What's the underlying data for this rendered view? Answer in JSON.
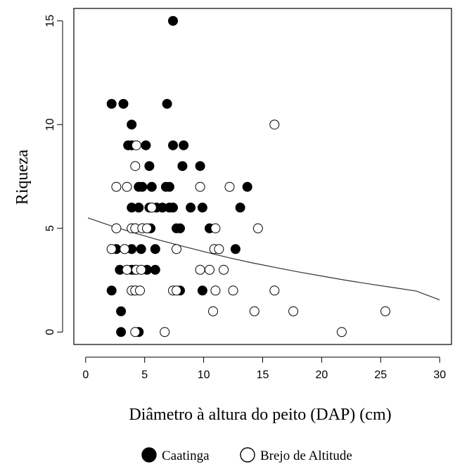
{
  "chart_data": {
    "type": "scatter",
    "xlabel": "Diâmetro à altura do peito (DAP) (cm)",
    "ylabel": "Riqueza",
    "xlim": [
      -1,
      31
    ],
    "ylim": [
      -0.6,
      15.6
    ],
    "x_ticks": [
      0,
      5,
      10,
      15,
      20,
      25,
      30
    ],
    "y_ticks": [
      0,
      5,
      10,
      15
    ],
    "grid": false,
    "legend_position": "bottom-center",
    "series": [
      {
        "name": "Caatinga",
        "marker": "filled-circle",
        "color": "#000000",
        "points": [
          [
            2.2,
            11
          ],
          [
            3.2,
            11
          ],
          [
            7.4,
            15
          ],
          [
            6.9,
            11
          ],
          [
            3.9,
            10
          ],
          [
            3.6,
            9
          ],
          [
            3.9,
            9
          ],
          [
            5.1,
            9
          ],
          [
            7.4,
            9
          ],
          [
            8.3,
            9
          ],
          [
            5.4,
            8
          ],
          [
            8.2,
            8
          ],
          [
            9.7,
            8
          ],
          [
            4.5,
            7
          ],
          [
            4.8,
            7
          ],
          [
            5.6,
            7
          ],
          [
            6.8,
            7
          ],
          [
            7.1,
            7
          ],
          [
            13.7,
            7
          ],
          [
            3.9,
            6
          ],
          [
            4.5,
            6
          ],
          [
            5.4,
            6
          ],
          [
            6.0,
            6
          ],
          [
            6.5,
            6
          ],
          [
            7.1,
            6
          ],
          [
            7.4,
            6
          ],
          [
            8.9,
            6
          ],
          [
            9.9,
            6
          ],
          [
            13.1,
            6
          ],
          [
            5.5,
            5
          ],
          [
            7.7,
            5
          ],
          [
            8.0,
            5
          ],
          [
            10.5,
            5
          ],
          [
            2.6,
            4
          ],
          [
            3.9,
            4
          ],
          [
            4.7,
            4
          ],
          [
            5.9,
            4
          ],
          [
            12.7,
            4
          ],
          [
            2.9,
            3
          ],
          [
            3.9,
            3
          ],
          [
            4.2,
            3
          ],
          [
            5.2,
            3
          ],
          [
            5.9,
            3
          ],
          [
            2.2,
            2
          ],
          [
            8.0,
            2
          ],
          [
            9.9,
            2
          ],
          [
            3.0,
            1
          ],
          [
            3.0,
            0
          ],
          [
            4.5,
            0
          ]
        ]
      },
      {
        "name": "Brejo de Altitude",
        "marker": "open-circle",
        "color": "#000000",
        "points": [
          [
            16.0,
            10
          ],
          [
            4.3,
            9
          ],
          [
            4.2,
            8
          ],
          [
            2.6,
            7
          ],
          [
            3.5,
            7
          ],
          [
            9.7,
            7
          ],
          [
            12.2,
            7
          ],
          [
            5.6,
            6
          ],
          [
            2.6,
            5
          ],
          [
            3.9,
            5
          ],
          [
            4.2,
            5
          ],
          [
            4.8,
            5
          ],
          [
            5.2,
            5
          ],
          [
            11.0,
            5
          ],
          [
            14.6,
            5
          ],
          [
            2.2,
            4
          ],
          [
            3.3,
            4
          ],
          [
            7.7,
            4
          ],
          [
            10.9,
            4
          ],
          [
            11.3,
            4
          ],
          [
            3.5,
            3
          ],
          [
            4.3,
            3
          ],
          [
            4.7,
            3
          ],
          [
            9.7,
            3
          ],
          [
            10.5,
            3
          ],
          [
            11.7,
            3
          ],
          [
            3.9,
            2
          ],
          [
            4.2,
            2
          ],
          [
            4.6,
            2
          ],
          [
            7.4,
            2
          ],
          [
            7.7,
            2
          ],
          [
            11.0,
            2
          ],
          [
            12.5,
            2
          ],
          [
            16.0,
            2
          ],
          [
            10.8,
            1
          ],
          [
            14.3,
            1
          ],
          [
            17.6,
            1
          ],
          [
            25.4,
            1
          ],
          [
            4.2,
            0
          ],
          [
            6.7,
            0
          ],
          [
            21.7,
            0
          ]
        ]
      }
    ],
    "fit_curve": {
      "type": "line",
      "x": [
        0.2,
        2,
        4,
        6,
        8,
        10,
        12,
        14,
        16,
        18,
        20,
        22,
        24,
        26,
        28,
        30
      ],
      "y": [
        5.5,
        5.15,
        4.8,
        4.47,
        4.17,
        3.88,
        3.6,
        3.35,
        3.12,
        2.9,
        2.7,
        2.5,
        2.32,
        2.15,
        1.98,
        1.55
      ]
    }
  }
}
